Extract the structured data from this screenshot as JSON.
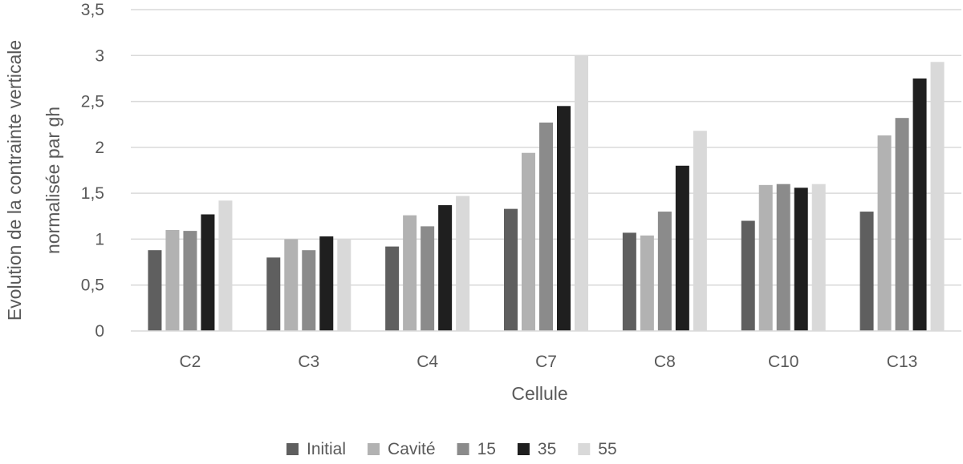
{
  "chart_data": {
    "type": "bar",
    "title": "",
    "xlabel": "Cellule",
    "ylabel_line1": "Evolution de la contrainte verticale",
    "ylabel_line2": "normalisée par gh",
    "categories": [
      "C2",
      "C3",
      "C4",
      "C7",
      "C8",
      "C10",
      "C13"
    ],
    "series": [
      {
        "name": "Initial",
        "color": "#5f5f5f",
        "values": [
          0.88,
          0.8,
          0.92,
          1.33,
          1.07,
          1.2,
          1.3
        ]
      },
      {
        "name": "Cavité",
        "color": "#b2b2b2",
        "values": [
          1.1,
          1.0,
          1.26,
          1.94,
          1.04,
          1.59,
          2.13
        ]
      },
      {
        "name": "15",
        "color": "#8b8b8b",
        "values": [
          1.09,
          0.88,
          1.14,
          2.27,
          1.3,
          1.6,
          2.32
        ]
      },
      {
        "name": "35",
        "color": "#1f1f1f",
        "values": [
          1.27,
          1.03,
          1.37,
          2.45,
          1.8,
          1.56,
          2.75
        ]
      },
      {
        "name": "55",
        "color": "#d9d9d9",
        "values": [
          1.42,
          1.0,
          1.47,
          3.0,
          2.18,
          1.6,
          2.93
        ]
      }
    ],
    "ylim": [
      0,
      3.5
    ],
    "yticks": [
      "0",
      "0,5",
      "1",
      "1,5",
      "2",
      "2,5",
      "3",
      "3,5"
    ],
    "grid": true,
    "legend_position": "bottom",
    "gridline_color": "#d9d9d9"
  }
}
